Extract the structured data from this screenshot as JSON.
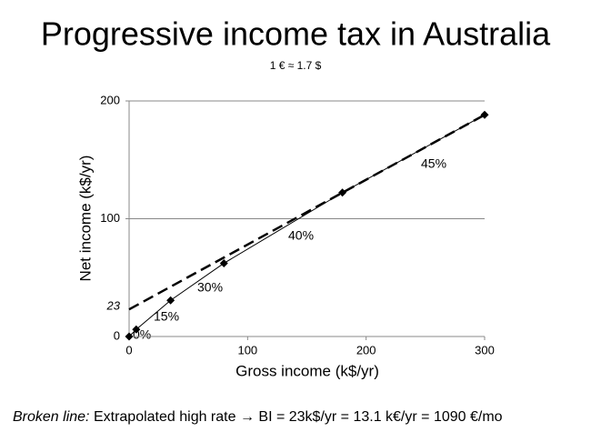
{
  "chart_data": {
    "type": "line",
    "title": "Progressive income tax in Australia",
    "subtitle": "1 € ≈ 1.7 $",
    "x_label": "Gross income (k$/yr)",
    "y_label": "Net income (k$/yr)",
    "xlim": [
      0,
      300
    ],
    "xticks": [
      0,
      100,
      200,
      300
    ],
    "ylim": [
      0,
      200
    ],
    "yticks": [
      0,
      100,
      200
    ],
    "grid": true,
    "series": [
      {
        "color": "#000000",
        "dashed": false,
        "markers": true,
        "x": [
          0,
          6,
          35,
          80,
          180,
          300
        ],
        "values": [
          0,
          6,
          30.7,
          62.2,
          122.2,
          188.2
        ]
      },
      {
        "color": "#000000",
        "dashed": true,
        "markers": false,
        "x": [
          0,
          300
        ],
        "values": [
          23,
          188.2
        ]
      }
    ],
    "annotations": [
      "0%",
      "15%",
      "30%",
      "40%",
      "45%"
    ],
    "note": {
      "label": "Broken line:",
      "text": "Extrapolated high rate → BI = 23k$/yr = 13.1 k€/yr = 1090 €/mo"
    }
  }
}
